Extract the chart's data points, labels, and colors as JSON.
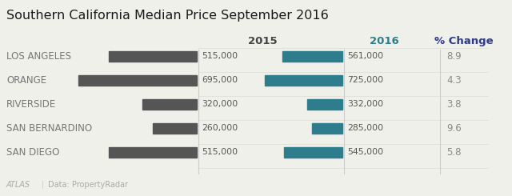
{
  "title": "Southern California Median Price September 2016",
  "regions": [
    "LOS ANGELES",
    "ORANGE",
    "RIVERSIDE",
    "SAN BERNARDINO",
    "SAN DIEGO"
  ],
  "values_2015": [
    515000,
    695000,
    320000,
    260000,
    515000
  ],
  "values_2016": [
    561000,
    725000,
    332000,
    285000,
    545000
  ],
  "pct_change": [
    "8.9",
    "4.3",
    "3.8",
    "9.6",
    "5.8"
  ],
  "color_2015": "#555555",
  "color_2016": "#2e7d8c",
  "color_pct_header": "#2e3a8a",
  "color_2016_header": "#2e7d8c",
  "color_header_2015": "#444444",
  "header_2015": "2015",
  "header_2016": "2016",
  "header_pct": "% Change",
  "bg_color": "#f0f0eb",
  "title_fontsize": 11.5,
  "row_fontsize": 8.5,
  "header_fontsize": 9.5,
  "value_fontsize": 7.8,
  "footer_atlas": "ATLAS",
  "footer_data": "Data: PropertyRadar",
  "max_bar_value": 750000,
  "divider_color": "#cccccc",
  "label_color": "#777777",
  "value_color": "#555555",
  "grid_color": "#e0e0da",
  "pct_color": "#888888"
}
